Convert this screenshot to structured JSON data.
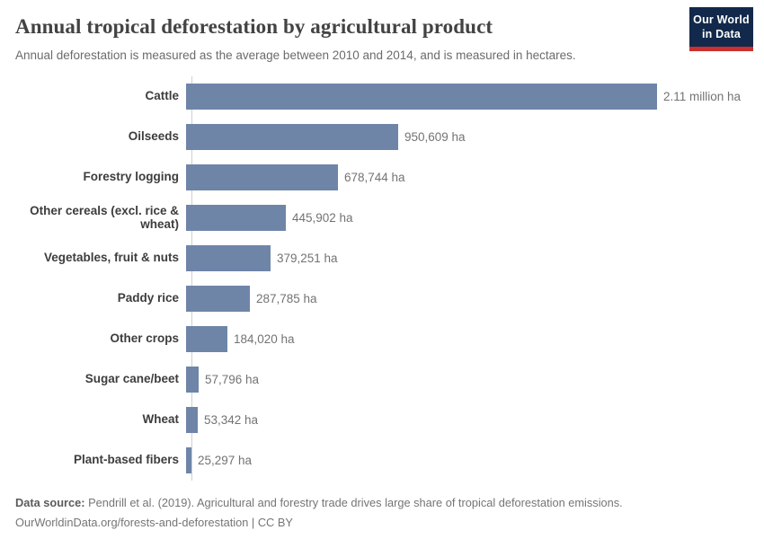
{
  "header": {
    "title": "Annual tropical deforestation by agricultural product",
    "subtitle": "Annual deforestation is measured as the average between 2010 and 2014, and is measured in hectares.",
    "logo": {
      "line1": "Our World",
      "line2": "in Data"
    }
  },
  "chart_data": {
    "type": "bar",
    "orientation": "horizontal",
    "title": "Annual tropical deforestation by agricultural product",
    "xlabel": "",
    "ylabel": "",
    "unit": "ha",
    "xlim": [
      0,
      2110000
    ],
    "grid": false,
    "legend": "none",
    "bar_color": "#6e85a8",
    "categories": [
      "Cattle",
      "Oilseeds",
      "Forestry logging",
      "Other cereals (excl. rice & wheat)",
      "Vegetables, fruit & nuts",
      "Paddy rice",
      "Other crops",
      "Sugar cane/beet",
      "Wheat",
      "Plant-based fibers"
    ],
    "values": [
      2110000,
      950609,
      678744,
      445902,
      379251,
      287785,
      184020,
      57796,
      53342,
      25297
    ],
    "value_labels": [
      "2.11 million ha",
      "950,609 ha",
      "678,744 ha",
      "445,902 ha",
      "379,251 ha",
      "287,785 ha",
      "184,020 ha",
      "57,796 ha",
      "53,342 ha",
      "25,297 ha"
    ]
  },
  "footer": {
    "source_label": "Data source:",
    "source_text": " Pendrill et al. (2019). Agricultural and forestry trade drives large share of tropical deforestation emissions.",
    "link_line": "OurWorldinData.org/forests-and-deforestation | CC BY"
  },
  "colors": {
    "bar": "#6e85a8",
    "axis_line": "#cfcfcf",
    "title_text": "#434343",
    "subtitle_text": "#6b6b6b",
    "value_text": "#737373",
    "category_text": "#3d3d3d",
    "logo_bg": "#12294b",
    "logo_underline": "#c9302f"
  }
}
